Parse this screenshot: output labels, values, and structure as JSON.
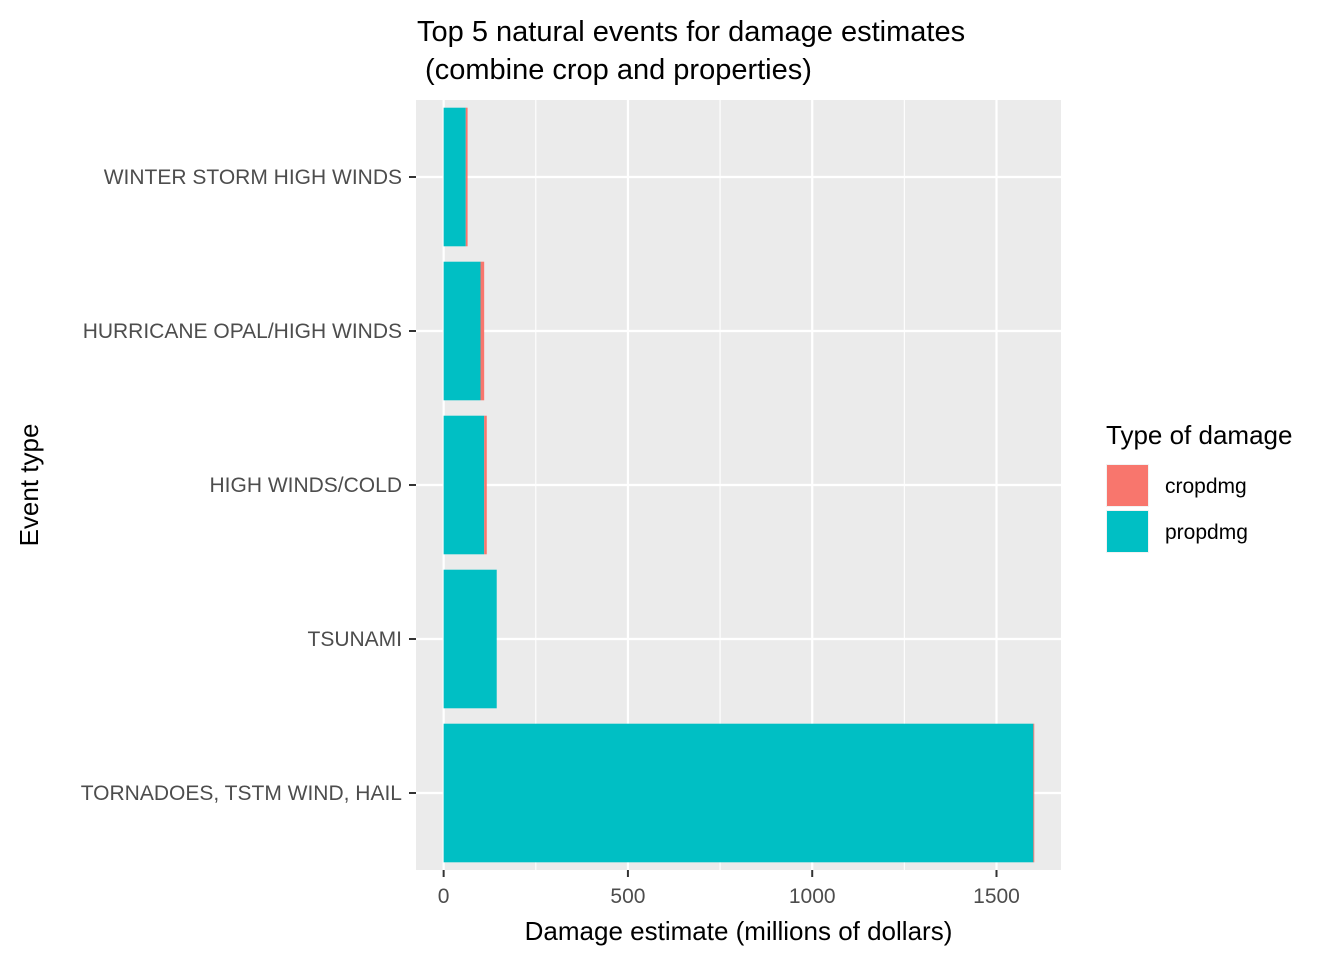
{
  "chart_data": {
    "type": "bar",
    "orientation": "horizontal",
    "stacked": true,
    "title_lines": [
      "Top 5 natural events for damage estimates",
      " (combine crop and properties)"
    ],
    "xlabel": "Damage estimate (millions of dollars)",
    "ylabel": "Event type",
    "xlim": [
      -75,
      1675
    ],
    "x_ticks": [
      0,
      500,
      1000,
      1500
    ],
    "x_tick_labels": [
      "0",
      "500",
      "1000",
      "1500"
    ],
    "categories": [
      "WINTER STORM HIGH WINDS",
      "HURRICANE OPAL/HIGH WINDS",
      "HIGH WINDS/COLD",
      "TSUNAMI",
      "TORNADOES, TSTM WIND, HAIL"
    ],
    "series": [
      {
        "name": "propdmg",
        "color": "#00BFC4",
        "values": [
          60,
          100,
          110,
          144,
          1600
        ]
      },
      {
        "name": "cropdmg",
        "color": "#F8766D",
        "values": [
          5,
          10,
          7,
          0.03,
          2.5
        ]
      }
    ],
    "grid": true,
    "panel_background": "#EBEBEB",
    "grid_color": "#FFFFFF",
    "legend": {
      "title": "Type of damage",
      "position": "right",
      "entries": [
        {
          "name": "cropdmg",
          "color": "#F8766D"
        },
        {
          "name": "propdmg",
          "color": "#00BFC4"
        }
      ]
    }
  }
}
